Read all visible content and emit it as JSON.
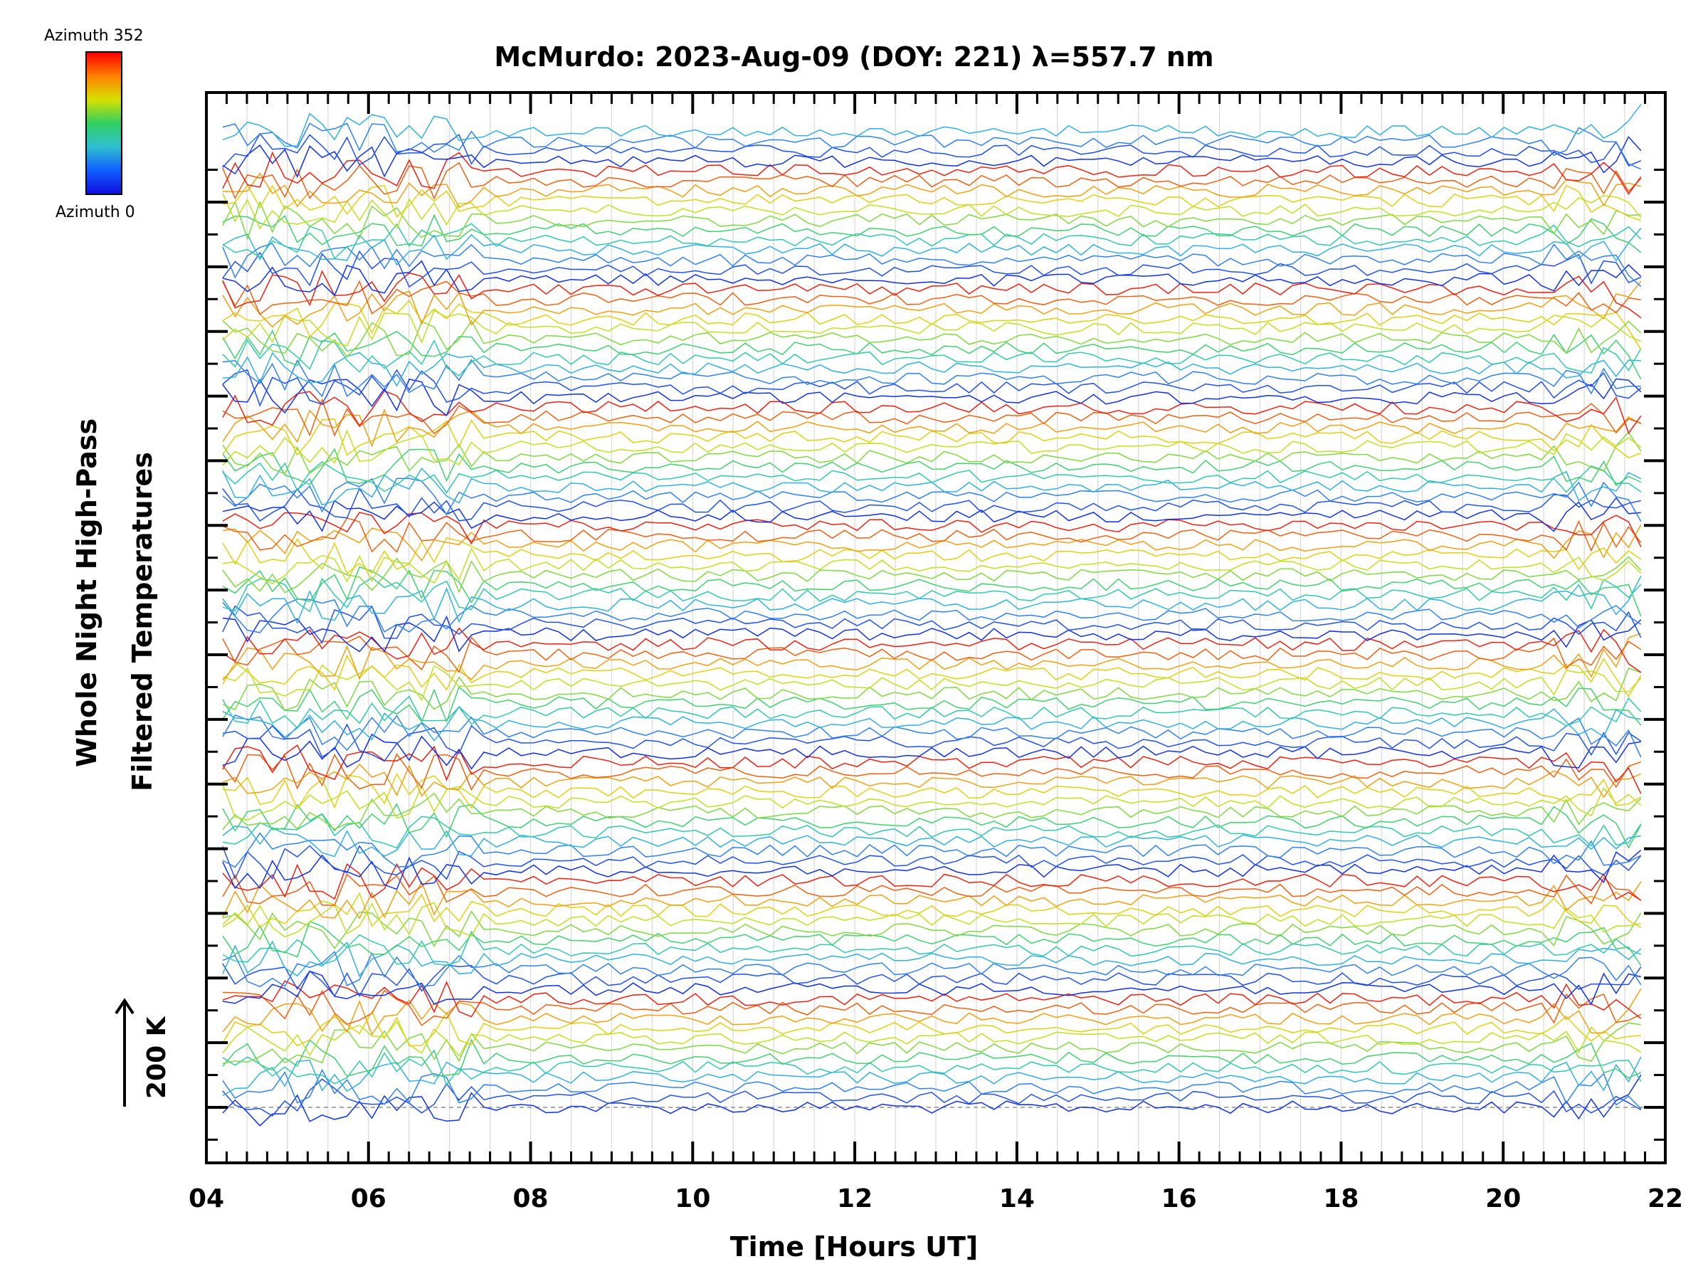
{
  "title": "McMurdo: 2023-Aug-09 (DOY: 221) λ=557.7 nm",
  "colorbar": {
    "top_label": "Azimuth 352",
    "bottom_label": "Azimuth 0",
    "colors": [
      "#ff0000",
      "#ff8000",
      "#d8e000",
      "#30d060",
      "#30c0d0",
      "#1060ff",
      "#1010e0"
    ]
  },
  "scale_label": "200 K",
  "chart_data": {
    "type": "line",
    "title": "McMurdo: 2023-Aug-09 (DOY: 221) λ=557.7 nm",
    "xlabel": "Time [Hours UT]",
    "ylabel_lines": [
      "Whole Night High-Pass",
      "Filtered Temperatures"
    ],
    "xlim": [
      4,
      22
    ],
    "x_ticks": [
      "04",
      "06",
      "08",
      "10",
      "12",
      "14",
      "16",
      "18",
      "20",
      "22"
    ],
    "x_data_range": [
      4.2,
      21.7
    ],
    "stack_offset_K": 200,
    "n_major_yticks": 15,
    "n_series": 100,
    "series_color_cycle": [
      "#1030e8",
      "#2050f0",
      "#3080f0",
      "#30b0e0",
      "#30c8b0",
      "#40d070",
      "#80d840",
      "#c0e020",
      "#e0d010",
      "#f0a010",
      "#f06010",
      "#f02010"
    ],
    "grid": "vertical-light",
    "note": "stacked line series colored by azimuth 0-352"
  }
}
